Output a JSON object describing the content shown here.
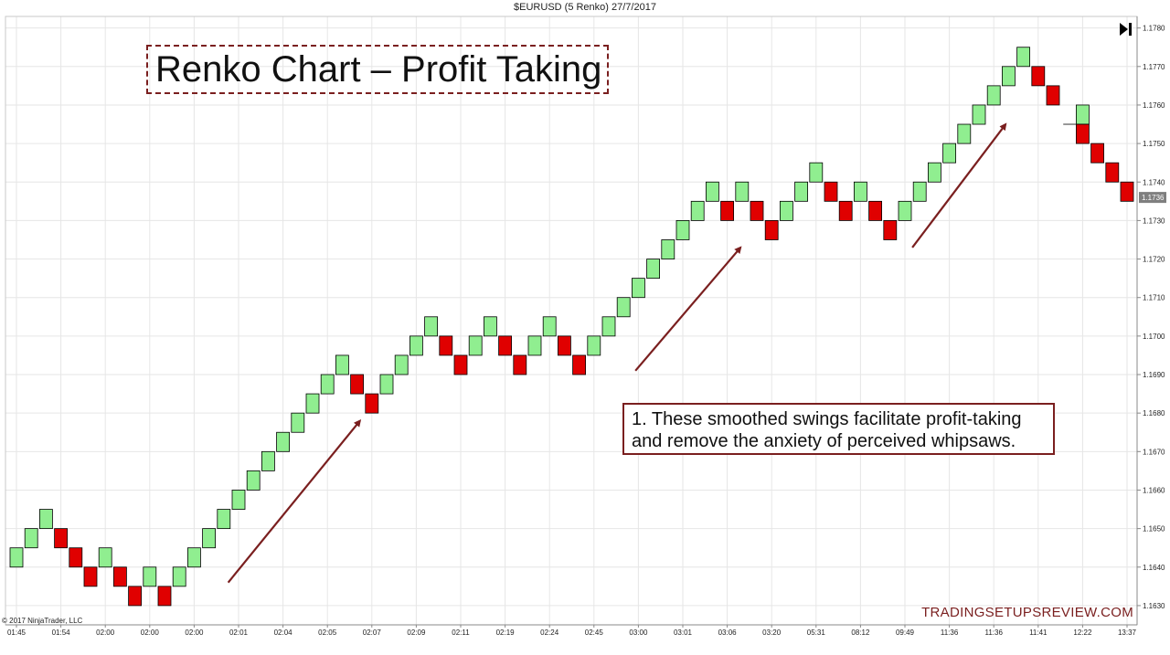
{
  "chart_data": {
    "type": "renko",
    "title": "$EURUSD (5 Renko)  27/7/2017",
    "headline": "Renko Chart – Profit Taking",
    "annotation": {
      "line1": "1. These smoothed swings facilitate profit-taking",
      "line2": "and remove the anxiety of perceived whipsaws."
    },
    "brick_size": 0.0005,
    "bricks": [
      {
        "dir": "up",
        "close": 1.1645
      },
      {
        "dir": "up",
        "close": 1.165
      },
      {
        "dir": "up",
        "close": 1.1655
      },
      {
        "dir": "down",
        "close": 1.1645
      },
      {
        "dir": "down",
        "close": 1.164
      },
      {
        "dir": "down",
        "close": 1.1635
      },
      {
        "dir": "up",
        "close": 1.1645
      },
      {
        "dir": "down",
        "close": 1.1635
      },
      {
        "dir": "down",
        "close": 1.163
      },
      {
        "dir": "up",
        "close": 1.164
      },
      {
        "dir": "down",
        "close": 1.163
      },
      {
        "dir": "up",
        "close": 1.164
      },
      {
        "dir": "up",
        "close": 1.1645
      },
      {
        "dir": "up",
        "close": 1.165
      },
      {
        "dir": "up",
        "close": 1.1655
      },
      {
        "dir": "up",
        "close": 1.166
      },
      {
        "dir": "up",
        "close": 1.1665
      },
      {
        "dir": "up",
        "close": 1.167
      },
      {
        "dir": "up",
        "close": 1.1675
      },
      {
        "dir": "up",
        "close": 1.168
      },
      {
        "dir": "up",
        "close": 1.1685
      },
      {
        "dir": "up",
        "close": 1.169
      },
      {
        "dir": "up",
        "close": 1.1695
      },
      {
        "dir": "down",
        "close": 1.1685
      },
      {
        "dir": "down",
        "close": 1.168
      },
      {
        "dir": "up",
        "close": 1.169
      },
      {
        "dir": "up",
        "close": 1.1695
      },
      {
        "dir": "up",
        "close": 1.17
      },
      {
        "dir": "up",
        "close": 1.1705
      },
      {
        "dir": "down",
        "close": 1.1695
      },
      {
        "dir": "down",
        "close": 1.169
      },
      {
        "dir": "up",
        "close": 1.17
      },
      {
        "dir": "up",
        "close": 1.1705
      },
      {
        "dir": "down",
        "close": 1.1695
      },
      {
        "dir": "down",
        "close": 1.169
      },
      {
        "dir": "up",
        "close": 1.17
      },
      {
        "dir": "up",
        "close": 1.1705
      },
      {
        "dir": "down",
        "close": 1.1695
      },
      {
        "dir": "down",
        "close": 1.169
      },
      {
        "dir": "up",
        "close": 1.17
      },
      {
        "dir": "up",
        "close": 1.1705
      },
      {
        "dir": "up",
        "close": 1.171
      },
      {
        "dir": "up",
        "close": 1.1715
      },
      {
        "dir": "up",
        "close": 1.172
      },
      {
        "dir": "up",
        "close": 1.1725
      },
      {
        "dir": "up",
        "close": 1.173
      },
      {
        "dir": "up",
        "close": 1.1735
      },
      {
        "dir": "up",
        "close": 1.174
      },
      {
        "dir": "down",
        "close": 1.173
      },
      {
        "dir": "up",
        "close": 1.174
      },
      {
        "dir": "down",
        "close": 1.173
      },
      {
        "dir": "down",
        "close": 1.1725
      },
      {
        "dir": "up",
        "close": 1.1735
      },
      {
        "dir": "up",
        "close": 1.174
      },
      {
        "dir": "up",
        "close": 1.1745
      },
      {
        "dir": "down",
        "close": 1.1735
      },
      {
        "dir": "down",
        "close": 1.173
      },
      {
        "dir": "up",
        "close": 1.174
      },
      {
        "dir": "down",
        "close": 1.173
      },
      {
        "dir": "down",
        "close": 1.1725
      },
      {
        "dir": "up",
        "close": 1.1735
      },
      {
        "dir": "up",
        "close": 1.174
      },
      {
        "dir": "up",
        "close": 1.1745
      },
      {
        "dir": "up",
        "close": 1.175
      },
      {
        "dir": "up",
        "close": 1.1755
      },
      {
        "dir": "up",
        "close": 1.176
      },
      {
        "dir": "up",
        "close": 1.1765
      },
      {
        "dir": "up",
        "close": 1.177
      },
      {
        "dir": "up",
        "close": 1.1775
      },
      {
        "dir": "down",
        "close": 1.1765
      },
      {
        "dir": "down",
        "close": 1.176
      },
      {
        "dir": "up",
        "close": 1.176,
        "offset": 1
      },
      {
        "dir": "down",
        "close": 1.175
      },
      {
        "dir": "down",
        "close": 1.1745
      },
      {
        "dir": "down",
        "close": 1.174
      },
      {
        "dir": "down",
        "close": 1.1735
      }
    ],
    "y_axis": {
      "min": 1.1625,
      "max": 1.1783,
      "ticks": [
        "1.1780",
        "1.1770",
        "1.1760",
        "1.1750",
        "1.1740",
        "1.1730",
        "1.1720",
        "1.1710",
        "1.1700",
        "1.1690",
        "1.1680",
        "1.1670",
        "1.1660",
        "1.1650",
        "1.1640",
        "1.1630"
      ]
    },
    "x_ticks": [
      {
        "label": "01:45",
        "brick": 0
      },
      {
        "label": "01:54",
        "brick": 3
      },
      {
        "label": "02:00",
        "brick": 6
      },
      {
        "label": "02:00",
        "brick": 9
      },
      {
        "label": "02:00",
        "brick": 12
      },
      {
        "label": "02:01",
        "brick": 15
      },
      {
        "label": "02:04",
        "brick": 18
      },
      {
        "label": "02:05",
        "brick": 21
      },
      {
        "label": "02:07",
        "brick": 24
      },
      {
        "label": "02:09",
        "brick": 27
      },
      {
        "label": "02:11",
        "brick": 30
      },
      {
        "label": "02:19",
        "brick": 33
      },
      {
        "label": "02:24",
        "brick": 36
      },
      {
        "label": "02:45",
        "brick": 39
      },
      {
        "label": "03:00",
        "brick": 42
      },
      {
        "label": "03:01",
        "brick": 45
      },
      {
        "label": "03:06",
        "brick": 48
      },
      {
        "label": "03:20",
        "brick": 51
      },
      {
        "label": "05:31",
        "brick": 54
      },
      {
        "label": "08:12",
        "brick": 57
      },
      {
        "label": "09:49",
        "brick": 60
      },
      {
        "label": "11:36",
        "brick": 63
      },
      {
        "label": "11:36",
        "brick": 66
      },
      {
        "label": "11:41",
        "brick": 69
      },
      {
        "label": "12:22",
        "brick": 72
      },
      {
        "label": "13:37",
        "brick": 75
      }
    ],
    "current_price": "1.1736",
    "current_price_value": 1.1736,
    "arrows": [
      {
        "from_brick": 14.3,
        "from_price": 1.1636,
        "to_brick": 23.2,
        "to_price": 1.1678
      },
      {
        "from_brick": 41.8,
        "from_price": 1.1691,
        "to_brick": 48.9,
        "to_price": 1.1723
      },
      {
        "from_brick": 60.5,
        "from_price": 1.1723,
        "to_brick": 66.8,
        "to_price": 1.1755
      }
    ],
    "colors": {
      "up": "#90ee90",
      "down": "#e00000",
      "outline": "#000000",
      "grid": "#e6e6e6",
      "arrow": "#7a1f1f"
    }
  },
  "copyright": "© 2017 NinjaTrader, LLC",
  "watermark": "TRADINGSETUPSREVIEW.COM",
  "icons": {
    "goto_end": "skip-to-end-icon"
  }
}
